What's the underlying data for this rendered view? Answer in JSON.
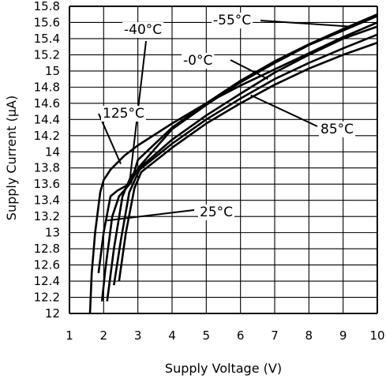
{
  "chart_data": {
    "type": "line",
    "title": "",
    "xlabel": "Supply Voltage (V)",
    "ylabel": "Supply Current (μA)",
    "xlim": [
      1,
      10
    ],
    "ylim": [
      12,
      15.8
    ],
    "grid": true,
    "x_ticks": [
      "1",
      "2",
      "3",
      "4",
      "5",
      "6",
      "7",
      "8",
      "9",
      "10"
    ],
    "y_ticks": [
      "12",
      "12.2",
      "12.4",
      "12.6",
      "12.8",
      "13",
      "13.2",
      "13.4",
      "13.6",
      "13.8",
      "14",
      "14.2",
      "14.4",
      "14.6",
      "14.8",
      "15",
      "15.2",
      "15.4",
      "15.6",
      "15.8"
    ],
    "series": [
      {
        "name": "125°C",
        "x": [
          1.6,
          1.65,
          1.75,
          1.9,
          2.0,
          2.2,
          2.6,
          3.0,
          4.0,
          5.0,
          6.0,
          7.0,
          8.0,
          9.0,
          10.0
        ],
        "y": [
          12.0,
          12.5,
          13.0,
          13.5,
          13.65,
          13.78,
          13.95,
          14.08,
          14.35,
          14.6,
          14.82,
          15.02,
          15.22,
          15.42,
          15.6
        ]
      },
      {
        "name": "-55°C",
        "x": [
          1.95,
          2.05,
          2.25,
          2.45,
          2.8,
          3.0,
          4.0,
          5.0,
          6.0,
          7.0,
          8.0,
          9.0,
          10.0
        ],
        "y": [
          12.15,
          12.55,
          13.2,
          13.45,
          13.62,
          13.9,
          14.3,
          14.6,
          14.88,
          15.12,
          15.33,
          15.52,
          15.7
        ]
      },
      {
        "name": "-40°C",
        "x": [
          1.85,
          2.0,
          2.2,
          2.4,
          2.75,
          3.05,
          4.0,
          5.0,
          6.0,
          7.0,
          8.0,
          9.0,
          10.0
        ],
        "y": [
          12.5,
          13.0,
          13.45,
          13.52,
          13.6,
          13.82,
          14.28,
          14.58,
          14.86,
          15.1,
          15.32,
          15.5,
          15.68
        ]
      },
      {
        "name": "-0°C",
        "x": [
          2.1,
          2.3,
          2.55,
          2.8,
          3.05,
          4.0,
          5.0,
          6.0,
          7.0,
          8.0,
          9.0,
          10.0
        ],
        "y": [
          12.15,
          12.8,
          13.45,
          13.7,
          13.8,
          14.15,
          14.45,
          14.72,
          14.98,
          15.2,
          15.4,
          15.55
        ]
      },
      {
        "name": "25°C",
        "x": [
          2.3,
          2.5,
          2.75,
          3.05,
          4.0,
          5.0,
          6.0,
          7.0,
          8.0,
          9.0,
          10.0
        ],
        "y": [
          12.35,
          12.9,
          13.5,
          13.78,
          14.1,
          14.4,
          14.66,
          14.9,
          15.1,
          15.28,
          15.45
        ]
      },
      {
        "name": "85°C",
        "x": [
          2.45,
          2.65,
          2.9,
          3.1,
          4.0,
          5.0,
          6.0,
          7.0,
          8.0,
          9.0,
          10.0
        ],
        "y": [
          12.4,
          13.0,
          13.55,
          13.75,
          14.05,
          14.35,
          14.6,
          14.83,
          15.03,
          15.2,
          15.35
        ]
      }
    ],
    "annotations": [
      {
        "text": "-40°C",
        "target": [
          2.75,
          13.6
        ]
      },
      {
        "text": "-55°C",
        "target": [
          9.2,
          15.55
        ]
      },
      {
        "text": "-0°C",
        "target": [
          6.8,
          14.9
        ]
      },
      {
        "text": "125°C",
        "target": [
          2.5,
          13.85
        ]
      },
      {
        "text": "85°C",
        "target": [
          6.3,
          14.7
        ]
      },
      {
        "text": "25°C",
        "target": [
          2.1,
          13.15
        ]
      }
    ]
  }
}
